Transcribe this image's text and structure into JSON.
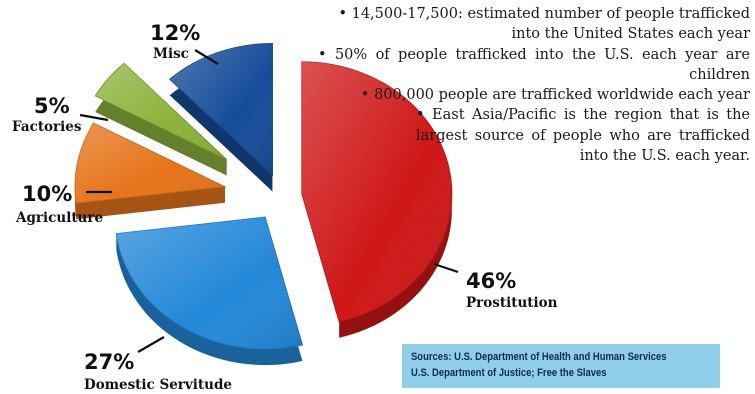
{
  "chart_data": {
    "type": "pie",
    "categories": [
      "Prostitution",
      "Domestic Servitude",
      "Agriculture",
      "Factories",
      "Misc"
    ],
    "values": [
      46,
      27,
      10,
      5,
      12
    ],
    "value_labels": [
      "46%",
      "27%",
      "10%",
      "5%",
      "12%"
    ],
    "colors": [
      "#cf1717",
      "#2388d8",
      "#e6741a",
      "#8cb23a",
      "#154c99"
    ],
    "style": "3D exploded pie",
    "legend": "none"
  },
  "facts": [
    "• 14,500-17,500: estimated number of people trafficked into the United States each year",
    "• 50% of people trafficked into the U.S. each year are children",
    "• 800,000 people are trafficked worldwide each year",
    "• East Asia/Pacific is the region that is the largest source of people who are trafficked into the U.S. each year."
  ],
  "sources": {
    "line1": "Sources:  U.S. Department of Health and Human Services",
    "line2": "U.S. Department of Justice; Free the Slaves"
  }
}
